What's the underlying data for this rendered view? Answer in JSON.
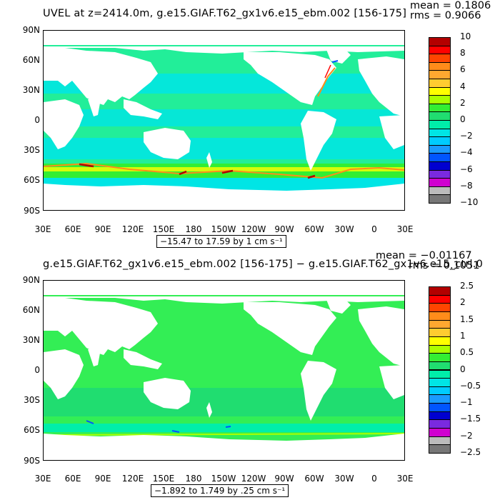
{
  "panels": [
    {
      "title": "UVEL at z=2414.0m, g.e15.GIAF.T62_gx1v6.e15_ebm.002 [156-175]",
      "mean": "mean = 0.1806",
      "rms": "rms = 0.9066",
      "range": "−15.47 to 17.59 by 1 cm s⁻¹",
      "lat_ticks": [
        "90N",
        "60N",
        "30N",
        "0",
        "30S",
        "60S",
        "90S"
      ],
      "lon_ticks": [
        "30E",
        "60E",
        "90E",
        "120E",
        "150E",
        "180",
        "150W",
        "120W",
        "90W",
        "60W",
        "30W",
        "0",
        "30E"
      ],
      "colorbar_labels": [
        "10",
        "8",
        "6",
        "4",
        "2",
        "0",
        "−2",
        "−4",
        "−6",
        "−8",
        "−10"
      ],
      "colorbar_colors": [
        "#b30000",
        "#ff0000",
        "#ff4500",
        "#ff8c1a",
        "#ffa830",
        "#ffcc30",
        "#ffff00",
        "#aaff00",
        "#33ee33",
        "#20dd70",
        "#00eeaa",
        "#00e5e5",
        "#00ccff",
        "#1a9aff",
        "#0055ff",
        "#0000d0",
        "#7a2ae0",
        "#d000d0",
        "#bbbbbb",
        "#777777"
      ]
    },
    {
      "title": "g.e15.GIAF.T62_gx1v6.e15_ebm.002 [156-175] − g.e15.GIAF.T62_gx1v6.e15_ctrl.0",
      "mean": "mean = −0.01167",
      "rms": "rms = 0.1051",
      "range": "−1.892 to 1.749 by .25 cm s⁻¹",
      "lat_ticks": [
        "90N",
        "60N",
        "30N",
        "0",
        "30S",
        "60S",
        "90S"
      ],
      "lon_ticks": [
        "30E",
        "60E",
        "90E",
        "120E",
        "150E",
        "180",
        "150W",
        "120W",
        "90W",
        "60W",
        "30W",
        "0",
        "30E"
      ],
      "colorbar_labels": [
        "2.5",
        "2",
        "1.5",
        "1",
        "0.5",
        "0",
        "−0.5",
        "−1",
        "−1.5",
        "−2",
        "−2.5"
      ],
      "colorbar_colors": [
        "#b30000",
        "#ff0000",
        "#ff4500",
        "#ff8c1a",
        "#ffa830",
        "#ffcc30",
        "#ffff00",
        "#aaff00",
        "#33ee33",
        "#20dd70",
        "#00eeaa",
        "#00e5e5",
        "#00ccff",
        "#1a9aff",
        "#0055ff",
        "#0000d0",
        "#7a2ae0",
        "#d000d0",
        "#bbbbbb",
        "#777777"
      ]
    }
  ],
  "colors": {
    "ocean_base_top": "#22ee99",
    "ocean_cyan": "#00e5e5",
    "ocean_green": "#33ee33",
    "ocean_base_bottom": "#33ee55",
    "land": "#ffffff"
  }
}
